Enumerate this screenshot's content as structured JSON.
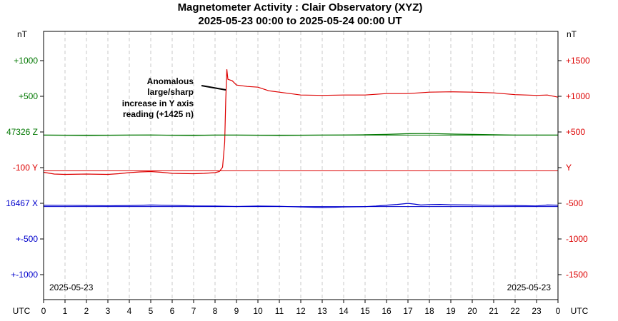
{
  "colors": {
    "y": "#dd0000",
    "z": "#007700",
    "x": "#0000cc",
    "grid": "#c8c8c8",
    "axis": "#000000"
  },
  "chart_data": {
    "type": "line",
    "title": "Magnetometer Activity : Clair Observatory (XYZ)",
    "subtitle": "2025-05-23 00:00 to 2025-05-24 00:00 UT",
    "x_axis": {
      "label": "UTC",
      "range": [
        0,
        24
      ],
      "ticks": [
        "0",
        "1",
        "2",
        "3",
        "4",
        "5",
        "6",
        "7",
        "8",
        "9",
        "10",
        "11",
        "12",
        "13",
        "14",
        "15",
        "16",
        "17",
        "18",
        "19",
        "20",
        "21",
        "22",
        "23",
        "0"
      ]
    },
    "date_left": "2025-05-23",
    "date_right": "2025-05-23",
    "left_axis": {
      "unit": "nT",
      "labels": [
        {
          "text": "+1000",
          "color": "z"
        },
        {
          "text": "+500",
          "color": "z"
        },
        {
          "text": "47326 Z",
          "color": "z"
        },
        {
          "text": "-100  Y",
          "color": "y"
        },
        {
          "text": "16467 X",
          "color": "x"
        },
        {
          "text": "+-500",
          "color": "x"
        },
        {
          "text": "+-1000",
          "color": "x"
        }
      ]
    },
    "right_axis": {
      "unit": "nT",
      "labels": [
        "+1500",
        "+1000",
        "+500",
        "Y",
        "-500",
        "-1000",
        "-1500"
      ]
    },
    "y_scale": {
      "min": -1800,
      "max": 1950
    },
    "baselines": {
      "Z": 500,
      "Y": 0,
      "X": -500
    },
    "annotation": "Anomalous large/sharp increase  in Y axis reading (+1425 n)",
    "annotation_lines": [
      "Anomalous",
      "large/sharp",
      "increase  in Y axis",
      "reading (+1425 n)"
    ],
    "series": [
      {
        "name": "Y",
        "color": "y",
        "x": [
          0,
          0.5,
          1,
          2,
          3,
          3.5,
          4,
          4.5,
          5,
          5.5,
          6,
          7,
          7.5,
          8,
          8.2,
          8.35,
          8.45,
          8.5,
          8.55,
          8.6,
          8.8,
          9,
          9.5,
          10,
          10.5,
          11,
          11.5,
          12,
          13,
          14,
          15,
          16,
          17,
          18,
          19,
          20,
          21,
          22,
          23,
          23.5,
          24
        ],
        "values": [
          -20,
          -45,
          -50,
          -45,
          -50,
          -40,
          -25,
          -15,
          -10,
          -20,
          -35,
          -40,
          -35,
          -25,
          -10,
          50,
          400,
          1000,
          1420,
          1280,
          1260,
          1200,
          1180,
          1170,
          1120,
          1100,
          1080,
          1060,
          1055,
          1060,
          1060,
          1080,
          1080,
          1100,
          1105,
          1100,
          1090,
          1065,
          1055,
          1060,
          1030
        ]
      },
      {
        "name": "Z",
        "color": "z",
        "x": [
          0,
          2,
          4,
          5,
          6,
          7,
          8,
          9,
          10,
          11,
          12,
          13,
          14,
          15,
          16,
          17,
          18,
          19,
          20,
          21,
          22,
          23,
          24
        ],
        "values": [
          500,
          495,
          500,
          502,
          497,
          495,
          500,
          500,
          498,
          495,
          498,
          500,
          502,
          505,
          510,
          520,
          522,
          515,
          510,
          505,
          500,
          500,
          500
        ]
      },
      {
        "name": "X",
        "color": "x",
        "x": [
          0,
          1,
          2,
          3,
          4,
          5,
          6,
          7,
          8,
          9,
          10,
          11,
          12,
          12.5,
          13,
          13.5,
          14,
          15,
          15.5,
          16,
          16.5,
          17,
          17.3,
          17.6,
          18,
          18.5,
          19,
          20,
          21,
          22,
          23,
          23.5,
          24
        ],
        "values": [
          -480,
          -482,
          -485,
          -488,
          -485,
          -478,
          -483,
          -490,
          -492,
          -498,
          -492,
          -495,
          -505,
          -508,
          -512,
          -510,
          -505,
          -500,
          -492,
          -480,
          -470,
          -455,
          -465,
          -478,
          -472,
          -470,
          -475,
          -478,
          -482,
          -485,
          -490,
          -478,
          -480
        ]
      }
    ]
  }
}
